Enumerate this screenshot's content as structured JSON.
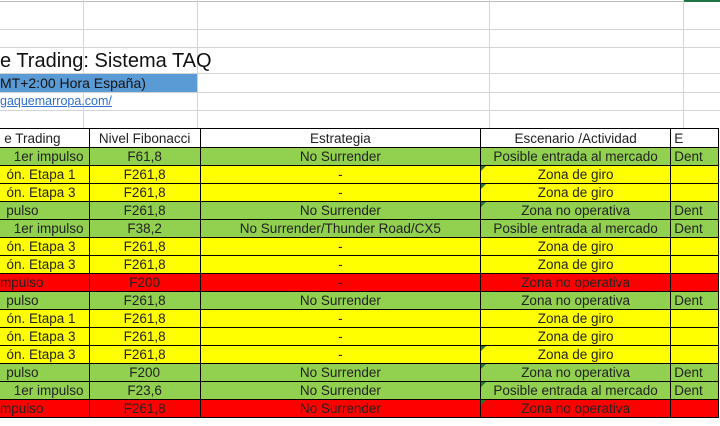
{
  "sheet": {
    "title": "e Trading: Sistema TAQ",
    "timezone_banner": "MT+2:00 Hora España)",
    "link": "gaquemarropa.com/",
    "colors": {
      "green": "#92d050",
      "yellow": "#ffff00",
      "red": "#ff0000",
      "banner": "#5b9bd5"
    },
    "headers": [
      "e Trading",
      "Nivel Fibonacci",
      "Estrategia",
      "Escenario /Actividad",
      "E"
    ],
    "rows": [
      {
        "color": "green",
        "cells": [
          "1er impulso",
          "F61,8",
          "No Surrender",
          "Posible entrada al mercado",
          "Dent"
        ],
        "comment": false
      },
      {
        "color": "yellow",
        "cells": [
          "ón. Etapa 1",
          "F261,8",
          "-",
          "Zona de giro",
          ""
        ],
        "comment": true
      },
      {
        "color": "yellow",
        "cells": [
          "ón. Etapa 3",
          "F261,8",
          "-",
          "Zona de giro",
          ""
        ],
        "comment": true
      },
      {
        "color": "green",
        "cells": [
          "pulso",
          "F261,8",
          "No Surrender",
          "Zona no operativa",
          "Dent"
        ],
        "comment": true
      },
      {
        "color": "green",
        "cells": [
          "1er impulso",
          "F38,2",
          "No Surrender/Thunder Road/CX5",
          "Posible entrada al mercado",
          "Dent"
        ],
        "comment": false
      },
      {
        "color": "yellow",
        "cells": [
          "ón. Etapa 3",
          "F261,8",
          "-",
          "Zona de giro",
          ""
        ],
        "comment": false
      },
      {
        "color": "yellow",
        "cells": [
          "ón. Etapa 3",
          "F261,8",
          "-",
          "Zona de giro",
          ""
        ],
        "comment": false
      },
      {
        "color": "red",
        "cells": [
          "mpulso",
          "F200",
          "-",
          "Zona no operativa",
          ""
        ],
        "comment": false
      },
      {
        "color": "green",
        "cells": [
          "pulso",
          "F261,8",
          "No Surrender",
          "Zona no operativa",
          "Dent"
        ],
        "comment": false
      },
      {
        "color": "yellow",
        "cells": [
          "ón. Etapa 1",
          "F261,8",
          "-",
          "Zona de giro",
          ""
        ],
        "comment": false
      },
      {
        "color": "yellow",
        "cells": [
          "ón. Etapa 3",
          "F261,8",
          "-",
          "Zona de giro",
          ""
        ],
        "comment": false
      },
      {
        "color": "yellow",
        "cells": [
          "ón. Etapa 3",
          "F261,8",
          "-",
          "Zona de giro",
          ""
        ],
        "comment": true
      },
      {
        "color": "green",
        "cells": [
          "pulso",
          "F200",
          "No Surrender",
          "Zona no operativa",
          "Dent"
        ],
        "comment": true
      },
      {
        "color": "green",
        "cells": [
          "1er impulso",
          "F23,6",
          "No Surrender",
          "Posible entrada al mercado",
          "Dent"
        ],
        "comment": true
      },
      {
        "color": "red",
        "cells": [
          "mpulso",
          "F261,8",
          "No Surrender",
          "Zona no operativa",
          ""
        ],
        "comment": true
      }
    ]
  }
}
